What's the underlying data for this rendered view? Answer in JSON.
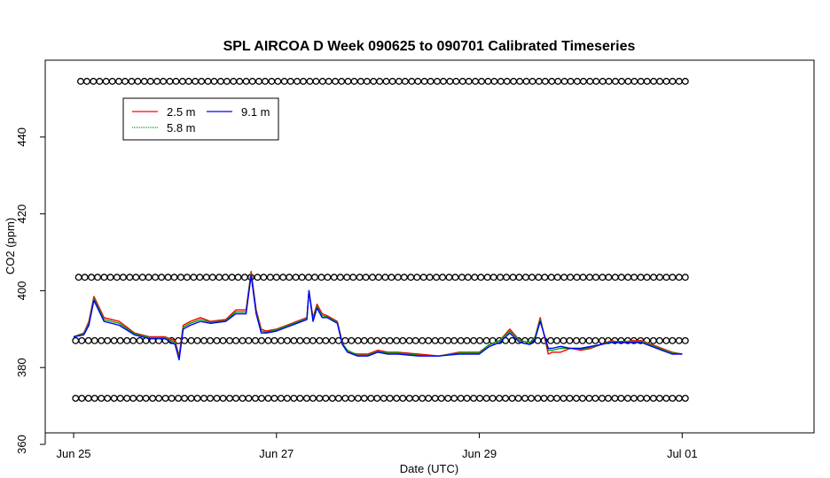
{
  "chart_data": {
    "type": "line",
    "title": "SPL AIRCOA D  Week 090625 to 090701  Calibrated Timeseries",
    "xlabel": "Date (UTC)",
    "ylabel": "CO2 (ppm)",
    "x_ticks": [
      "Jun 25",
      "Jun 27",
      "Jun 29",
      "Jul 01"
    ],
    "x_tick_days": [
      0,
      2,
      4,
      6
    ],
    "xlim": [
      -0.28,
      7.3
    ],
    "y_ticks": [
      360,
      380,
      400,
      420,
      440
    ],
    "ylim": [
      363,
      460
    ],
    "grid": false,
    "legend": {
      "position": "top-left",
      "entries": [
        "2.5 m",
        "9.1 m",
        "5.8 m"
      ]
    },
    "series": [
      {
        "name": "2.5 m",
        "color": "#ff0000",
        "x": [
          0.0,
          0.1,
          0.15,
          0.2,
          0.3,
          0.45,
          0.6,
          0.75,
          0.9,
          1.0,
          1.04,
          1.08,
          1.15,
          1.25,
          1.35,
          1.5,
          1.6,
          1.7,
          1.75,
          1.8,
          1.85,
          1.9,
          2.0,
          2.1,
          2.2,
          2.3,
          2.32,
          2.36,
          2.4,
          2.45,
          2.5,
          2.6,
          2.65,
          2.7,
          2.8,
          2.9,
          3.0,
          3.1,
          3.2,
          3.4,
          3.6,
          3.8,
          4.0,
          4.1,
          4.2,
          4.3,
          4.4,
          4.5,
          4.55,
          4.6,
          4.68,
          4.72,
          4.8,
          4.9,
          5.0,
          5.1,
          5.2,
          5.3,
          5.4,
          5.5,
          5.6,
          5.7,
          5.8,
          5.9,
          6.0
        ],
        "values": [
          388.0,
          389.0,
          392.0,
          398.5,
          393.0,
          392.0,
          389.0,
          388.0,
          388.0,
          387.0,
          383.0,
          391.0,
          392.0,
          393.0,
          392.0,
          392.5,
          395.0,
          395.0,
          405.0,
          395.0,
          390.0,
          389.5,
          390.0,
          391.0,
          392.0,
          393.0,
          400.0,
          393.0,
          396.5,
          394.0,
          393.5,
          392.0,
          386.5,
          384.0,
          383.5,
          383.5,
          384.5,
          384.0,
          384.0,
          383.5,
          383.0,
          384.0,
          384.0,
          386.0,
          387.0,
          390.0,
          387.0,
          386.5,
          388.0,
          393.0,
          383.5,
          384.0,
          384.0,
          385.0,
          384.5,
          385.0,
          386.0,
          387.0,
          386.5,
          387.0,
          387.0,
          386.0,
          385.0,
          384.0,
          383.5
        ]
      },
      {
        "name": "9.1 m",
        "color": "#0000ff",
        "x": [
          0.0,
          0.1,
          0.15,
          0.2,
          0.3,
          0.45,
          0.6,
          0.75,
          0.9,
          1.0,
          1.04,
          1.08,
          1.15,
          1.25,
          1.35,
          1.5,
          1.6,
          1.7,
          1.75,
          1.8,
          1.85,
          1.9,
          2.0,
          2.1,
          2.2,
          2.3,
          2.32,
          2.36,
          2.4,
          2.45,
          2.5,
          2.6,
          2.65,
          2.7,
          2.8,
          2.9,
          3.0,
          3.1,
          3.2,
          3.4,
          3.6,
          3.8,
          4.0,
          4.1,
          4.2,
          4.3,
          4.4,
          4.5,
          4.55,
          4.6,
          4.68,
          4.72,
          4.8,
          4.9,
          5.0,
          5.1,
          5.2,
          5.3,
          5.4,
          5.5,
          5.6,
          5.7,
          5.8,
          5.9,
          6.0
        ],
        "values": [
          388.0,
          388.5,
          391.0,
          397.5,
          392.0,
          391.0,
          388.5,
          387.5,
          387.5,
          386.0,
          382.0,
          390.0,
          391.0,
          392.0,
          391.5,
          392.0,
          394.0,
          394.0,
          404.0,
          394.0,
          389.0,
          389.0,
          389.5,
          390.5,
          391.5,
          392.5,
          400.0,
          392.0,
          395.5,
          393.0,
          393.0,
          391.5,
          386.0,
          384.0,
          383.0,
          383.0,
          384.0,
          383.5,
          383.5,
          383.0,
          383.0,
          383.5,
          383.5,
          385.5,
          386.5,
          389.0,
          386.5,
          386.0,
          387.5,
          392.0,
          385.0,
          385.0,
          385.5,
          385.0,
          385.0,
          385.5,
          386.0,
          386.5,
          386.5,
          386.5,
          386.5,
          385.5,
          384.5,
          383.5,
          383.5
        ]
      },
      {
        "name": "5.8 m",
        "color": "#00a000",
        "x": [
          0.0,
          0.1,
          0.15,
          0.2,
          0.3,
          0.45,
          0.6,
          0.75,
          0.9,
          1.0,
          1.04,
          1.08,
          1.15,
          1.25,
          1.35,
          1.5,
          1.6,
          1.7,
          1.75,
          1.8,
          1.85,
          1.9,
          2.0,
          2.1,
          2.2,
          2.3,
          2.32,
          2.36,
          2.4,
          2.45,
          2.5,
          2.6,
          2.65,
          2.7,
          2.8,
          2.9,
          3.0,
          3.1,
          3.2,
          3.4,
          3.6,
          3.8,
          4.0,
          4.1,
          4.2,
          4.3,
          4.4,
          4.5,
          4.55,
          4.6,
          4.68,
          4.72,
          4.8,
          4.9,
          5.0,
          5.1,
          5.2,
          5.3,
          5.4,
          5.5,
          5.6,
          5.7,
          5.8,
          5.9,
          6.0
        ],
        "values": [
          388.0,
          388.8,
          391.5,
          398.0,
          392.5,
          391.5,
          388.8,
          387.8,
          387.8,
          386.5,
          382.5,
          390.5,
          391.5,
          392.5,
          391.8,
          392.2,
          394.5,
          394.5,
          404.5,
          394.5,
          389.5,
          389.2,
          389.8,
          390.8,
          391.8,
          392.8,
          400.0,
          392.5,
          396.0,
          393.5,
          393.2,
          391.8,
          386.2,
          384.5,
          383.2,
          383.2,
          384.2,
          383.8,
          383.8,
          383.2,
          383.0,
          383.8,
          383.8,
          386.0,
          387.0,
          389.5,
          387.0,
          386.5,
          388.0,
          392.5,
          384.5,
          384.5,
          385.0,
          385.0,
          384.8,
          385.2,
          386.0,
          386.8,
          386.8,
          386.8,
          386.8,
          385.8,
          384.8,
          383.8,
          383.5
        ]
      }
    ],
    "reference_markers": [
      {
        "name": "upper-reference",
        "y": 454.5,
        "x_start": 0.1,
        "x_end": 6.0,
        "count": 48
      },
      {
        "name": "high-reference",
        "y": 403.5,
        "x_start": 0.08,
        "x_end": 6.0,
        "count": 48
      },
      {
        "name": "mid-reference",
        "y": 387.0,
        "x_start": 0.05,
        "x_end": 6.0,
        "count": 48
      },
      {
        "name": "low-reference",
        "y": 372.0,
        "x_start": 0.05,
        "x_end": 6.0,
        "count": 48
      }
    ]
  }
}
